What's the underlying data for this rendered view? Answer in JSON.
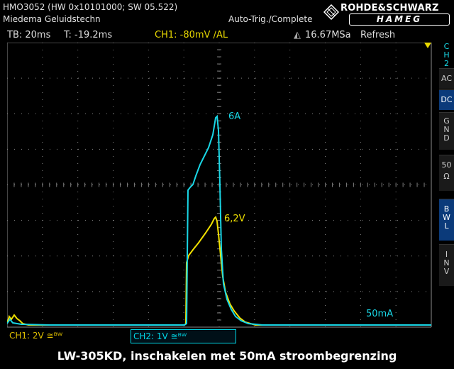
{
  "header": {
    "model_line": "HMO3052 (HW 0x10101000; SW 05.522)",
    "owner_line": "Miedema Geluidstechn",
    "trigger_status": "Auto-Trig./Complete",
    "logo_top": "ROHDE&SCHWARZ",
    "logo_bottom": "HAMEG"
  },
  "info_bar": {
    "timebase": "TB: 20ms",
    "trigger_time": "T: -19.2ms",
    "trigger_level": "CH1: -80mV ∕AL",
    "sample_rate": "16.67MSa",
    "acq_mode": "Refresh"
  },
  "sidebar": {
    "channel": [
      "C",
      "H",
      "2"
    ],
    "ac": "AC",
    "dc": "DC",
    "gnd": [
      "G",
      "N",
      "D"
    ],
    "ohm": [
      "50",
      "Ω"
    ],
    "bwl": [
      "B",
      "W",
      "L"
    ],
    "inv": [
      "I",
      "N",
      "V"
    ]
  },
  "annotations": {
    "current_peak": "6A",
    "voltage_peak": "6,2V",
    "current_limit": "50mA"
  },
  "bottom_bar": {
    "ch1": "CH1: 2V ≅ᴮᵂ",
    "ch2": "CH2: 1V ≅ᴮᵂ"
  },
  "caption": "LW-305KD, inschakelen met 50mA stroombegrenzing",
  "colors": {
    "ch1": "#f0e000",
    "ch2": "#19d7e6",
    "grid": "#808080",
    "active_button": "#0b3a7a"
  }
}
